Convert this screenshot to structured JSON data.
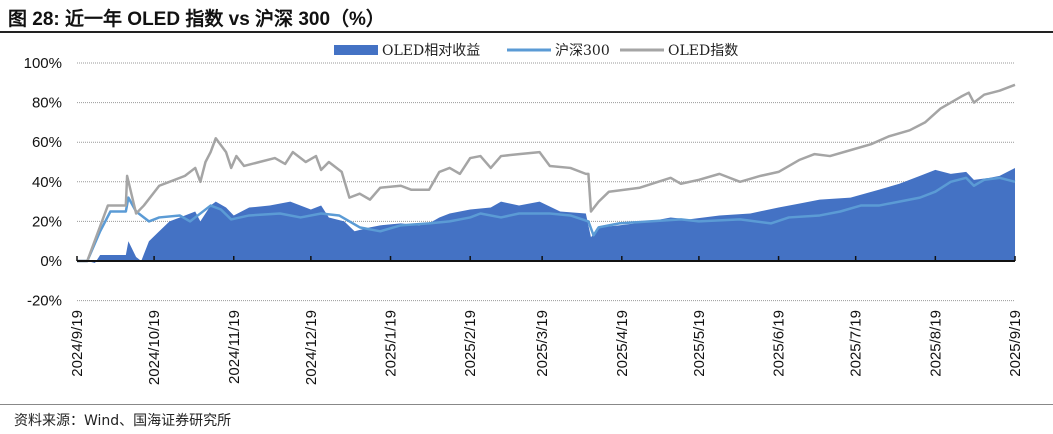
{
  "title": "图 28:  近一年 OLED 指数 vs 沪深 300（%）",
  "source": "资料来源：Wind、国海证券研究所",
  "colors": {
    "relative": "#4472c4",
    "csi300": "#5b9bd5",
    "oled": "#a5a5a5"
  },
  "chart_data": {
    "type": "line",
    "title": "近一年 OLED 指数 vs 沪深 300（%）",
    "x_unit": "days since 2024/9/19",
    "xlim": [
      0,
      365
    ],
    "ylim": [
      -20,
      100
    ],
    "yticks": [
      "-20%",
      "0%",
      "20%",
      "40%",
      "60%",
      "80%",
      "100%"
    ],
    "ytick_values": [
      -20,
      0,
      20,
      40,
      60,
      80,
      100
    ],
    "xticks": [
      "2024/9/19",
      "2024/10/19",
      "2024/11/19",
      "2024/12/19",
      "2025/1/19",
      "2025/2/19",
      "2025/3/19",
      "2025/4/19",
      "2025/5/19",
      "2025/6/19",
      "2025/7/19",
      "2025/8/19",
      "2025/9/19"
    ],
    "xtick_values": [
      0,
      30,
      61,
      91,
      122,
      153,
      181,
      212,
      242,
      273,
      303,
      334,
      365
    ],
    "grid": true,
    "legend": "top-right",
    "series": [
      {
        "name": "OLED相对收益",
        "kind": "area",
        "points": [
          [
            0,
            0
          ],
          [
            4,
            0
          ],
          [
            7,
            -1
          ],
          [
            9,
            3
          ],
          [
            19,
            3
          ],
          [
            20,
            10
          ],
          [
            23,
            2
          ],
          [
            25,
            0
          ],
          [
            28,
            10
          ],
          [
            32,
            15
          ],
          [
            36,
            20
          ],
          [
            40,
            22
          ],
          [
            46,
            25
          ],
          [
            48,
            20
          ],
          [
            52,
            28
          ],
          [
            54,
            30
          ],
          [
            58,
            27
          ],
          [
            61,
            23
          ],
          [
            67,
            27
          ],
          [
            75,
            28
          ],
          [
            83,
            30
          ],
          [
            91,
            26
          ],
          [
            95,
            28
          ],
          [
            98,
            22
          ],
          [
            104,
            20
          ],
          [
            108,
            15
          ],
          [
            114,
            17
          ],
          [
            118,
            18
          ],
          [
            126,
            19
          ],
          [
            133,
            18
          ],
          [
            137,
            19
          ],
          [
            141,
            22
          ],
          [
            145,
            24
          ],
          [
            153,
            26
          ],
          [
            161,
            27
          ],
          [
            165,
            30
          ],
          [
            172,
            28
          ],
          [
            180,
            30
          ],
          [
            188,
            25
          ],
          [
            198,
            24
          ],
          [
            200,
            12
          ],
          [
            203,
            17
          ],
          [
            211,
            18
          ],
          [
            223,
            20
          ],
          [
            231,
            22
          ],
          [
            238,
            21
          ],
          [
            250,
            23
          ],
          [
            262,
            24
          ],
          [
            273,
            27
          ],
          [
            281,
            29
          ],
          [
            289,
            31
          ],
          [
            301,
            32
          ],
          [
            312,
            36
          ],
          [
            320,
            39
          ],
          [
            328,
            43
          ],
          [
            334,
            46
          ],
          [
            340,
            44
          ],
          [
            346,
            45
          ],
          [
            349,
            41
          ],
          [
            355,
            42
          ],
          [
            359,
            43
          ],
          [
            365,
            47
          ]
        ]
      },
      {
        "name": "沪深300",
        "kind": "line",
        "points": [
          [
            0,
            0
          ],
          [
            4,
            0
          ],
          [
            9,
            15
          ],
          [
            13,
            25
          ],
          [
            19,
            25
          ],
          [
            20,
            32
          ],
          [
            23,
            25
          ],
          [
            28,
            20
          ],
          [
            32,
            22
          ],
          [
            40,
            23
          ],
          [
            44,
            20
          ],
          [
            46,
            22
          ],
          [
            52,
            28
          ],
          [
            56,
            26
          ],
          [
            60,
            21
          ],
          [
            67,
            23
          ],
          [
            79,
            24
          ],
          [
            87,
            22
          ],
          [
            95,
            24
          ],
          [
            102,
            23
          ],
          [
            110,
            17
          ],
          [
            118,
            15
          ],
          [
            126,
            18
          ],
          [
            137,
            19
          ],
          [
            145,
            20
          ],
          [
            153,
            22
          ],
          [
            157,
            24
          ],
          [
            165,
            22
          ],
          [
            172,
            24
          ],
          [
            184,
            24
          ],
          [
            192,
            23
          ],
          [
            199,
            20
          ],
          [
            201,
            13
          ],
          [
            203,
            17
          ],
          [
            211,
            19
          ],
          [
            223,
            20
          ],
          [
            235,
            21
          ],
          [
            242,
            20
          ],
          [
            258,
            21
          ],
          [
            270,
            19
          ],
          [
            277,
            22
          ],
          [
            289,
            23
          ],
          [
            297,
            25
          ],
          [
            305,
            28
          ],
          [
            312,
            28
          ],
          [
            320,
            30
          ],
          [
            328,
            32
          ],
          [
            334,
            35
          ],
          [
            340,
            40
          ],
          [
            346,
            42
          ],
          [
            349,
            38
          ],
          [
            353,
            41
          ],
          [
            359,
            42
          ],
          [
            365,
            40
          ]
        ]
      },
      {
        "name": "OLED指数",
        "kind": "line",
        "points": [
          [
            0,
            0
          ],
          [
            4,
            0
          ],
          [
            12,
            28
          ],
          [
            19,
            28
          ],
          [
            19.5,
            43
          ],
          [
            23,
            24
          ],
          [
            26,
            28
          ],
          [
            32,
            38
          ],
          [
            36,
            40
          ],
          [
            42,
            43
          ],
          [
            46,
            47
          ],
          [
            48,
            40
          ],
          [
            50,
            50
          ],
          [
            52,
            55
          ],
          [
            54,
            62
          ],
          [
            58,
            55
          ],
          [
            60,
            47
          ],
          [
            62,
            53
          ],
          [
            65,
            48
          ],
          [
            71,
            50
          ],
          [
            77,
            52
          ],
          [
            81,
            49
          ],
          [
            84,
            55
          ],
          [
            89,
            50
          ],
          [
            93,
            53
          ],
          [
            95,
            46
          ],
          [
            98,
            50
          ],
          [
            103,
            45
          ],
          [
            106,
            32
          ],
          [
            110,
            34
          ],
          [
            114,
            31
          ],
          [
            118,
            37
          ],
          [
            126,
            38
          ],
          [
            130,
            36
          ],
          [
            137,
            36
          ],
          [
            141,
            45
          ],
          [
            145,
            47
          ],
          [
            149,
            44
          ],
          [
            153,
            52
          ],
          [
            157,
            53
          ],
          [
            161,
            47
          ],
          [
            165,
            53
          ],
          [
            172,
            54
          ],
          [
            180,
            55
          ],
          [
            184,
            48
          ],
          [
            192,
            47
          ],
          [
            198,
            44
          ],
          [
            199,
            44
          ],
          [
            200,
            25
          ],
          [
            203,
            30
          ],
          [
            207,
            35
          ],
          [
            219,
            37
          ],
          [
            231,
            42
          ],
          [
            235,
            39
          ],
          [
            242,
            41
          ],
          [
            250,
            44
          ],
          [
            258,
            40
          ],
          [
            266,
            43
          ],
          [
            273,
            45
          ],
          [
            281,
            51
          ],
          [
            287,
            54
          ],
          [
            293,
            53
          ],
          [
            301,
            56
          ],
          [
            309,
            59
          ],
          [
            316,
            63
          ],
          [
            324,
            66
          ],
          [
            330,
            70
          ],
          [
            336,
            77
          ],
          [
            344,
            83
          ],
          [
            347,
            85
          ],
          [
            349,
            80
          ],
          [
            353,
            84
          ],
          [
            359,
            86
          ],
          [
            365,
            89
          ]
        ]
      }
    ]
  }
}
